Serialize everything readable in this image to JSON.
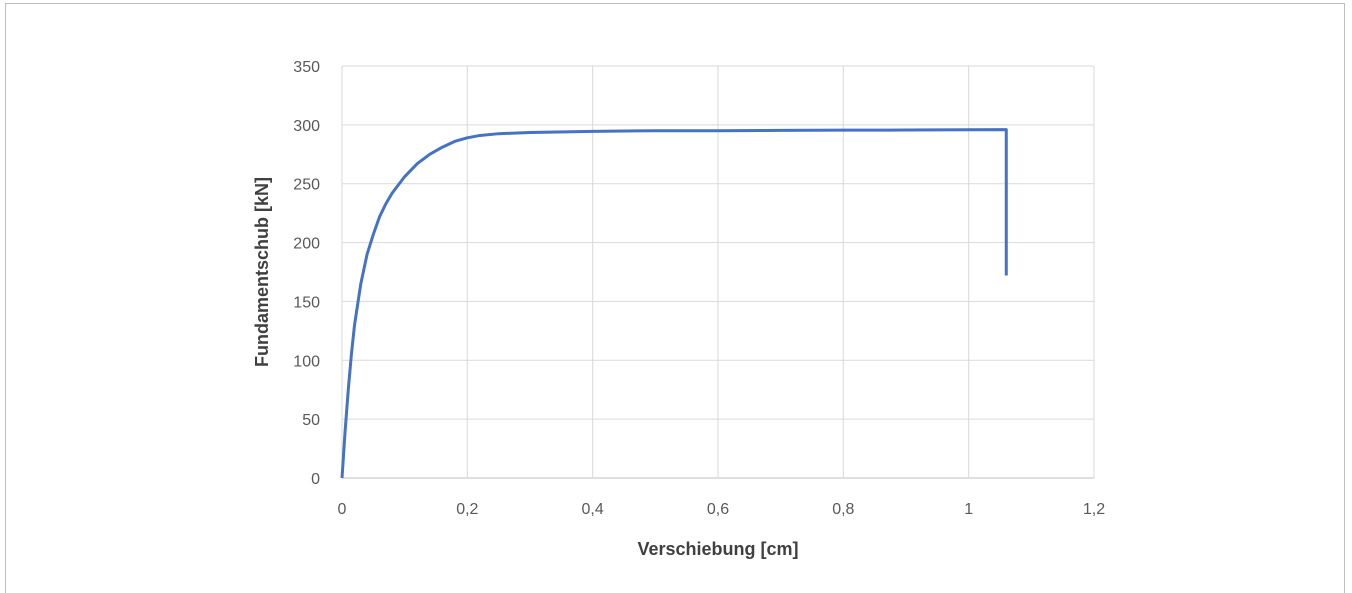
{
  "chart_data": {
    "type": "line",
    "title": "",
    "xlabel": "Verschiebung [cm]",
    "ylabel": "Fundamentschub [kN]",
    "xlim": [
      0,
      1.2
    ],
    "ylim": [
      0,
      350
    ],
    "x_ticks": [
      "0",
      "0,2",
      "0,4",
      "0,6",
      "0,8",
      "1",
      "1,2"
    ],
    "y_ticks": [
      "0",
      "50",
      "100",
      "150",
      "200",
      "250",
      "300",
      "350"
    ],
    "grid": true,
    "legend": "none",
    "line_color": "#4472c4",
    "grid_color": "#d9d9d9",
    "series": [
      {
        "x": [
          0,
          0.005,
          0.01,
          0.015,
          0.02,
          0.03,
          0.04,
          0.05,
          0.06,
          0.07,
          0.08,
          0.1,
          0.12,
          0.14,
          0.16,
          0.18,
          0.2,
          0.22,
          0.25,
          0.3,
          0.4,
          0.5,
          0.6,
          0.7,
          0.8,
          0.9,
          1.0,
          1.06,
          1.06
        ],
        "y": [
          0,
          40,
          75,
          105,
          130,
          165,
          190,
          207,
          222,
          233,
          242,
          256,
          267,
          275,
          281,
          286,
          289,
          291,
          292.5,
          293.5,
          294.5,
          295,
          295,
          295.3,
          295.5,
          295.6,
          295.8,
          296,
          172
        ]
      }
    ]
  }
}
